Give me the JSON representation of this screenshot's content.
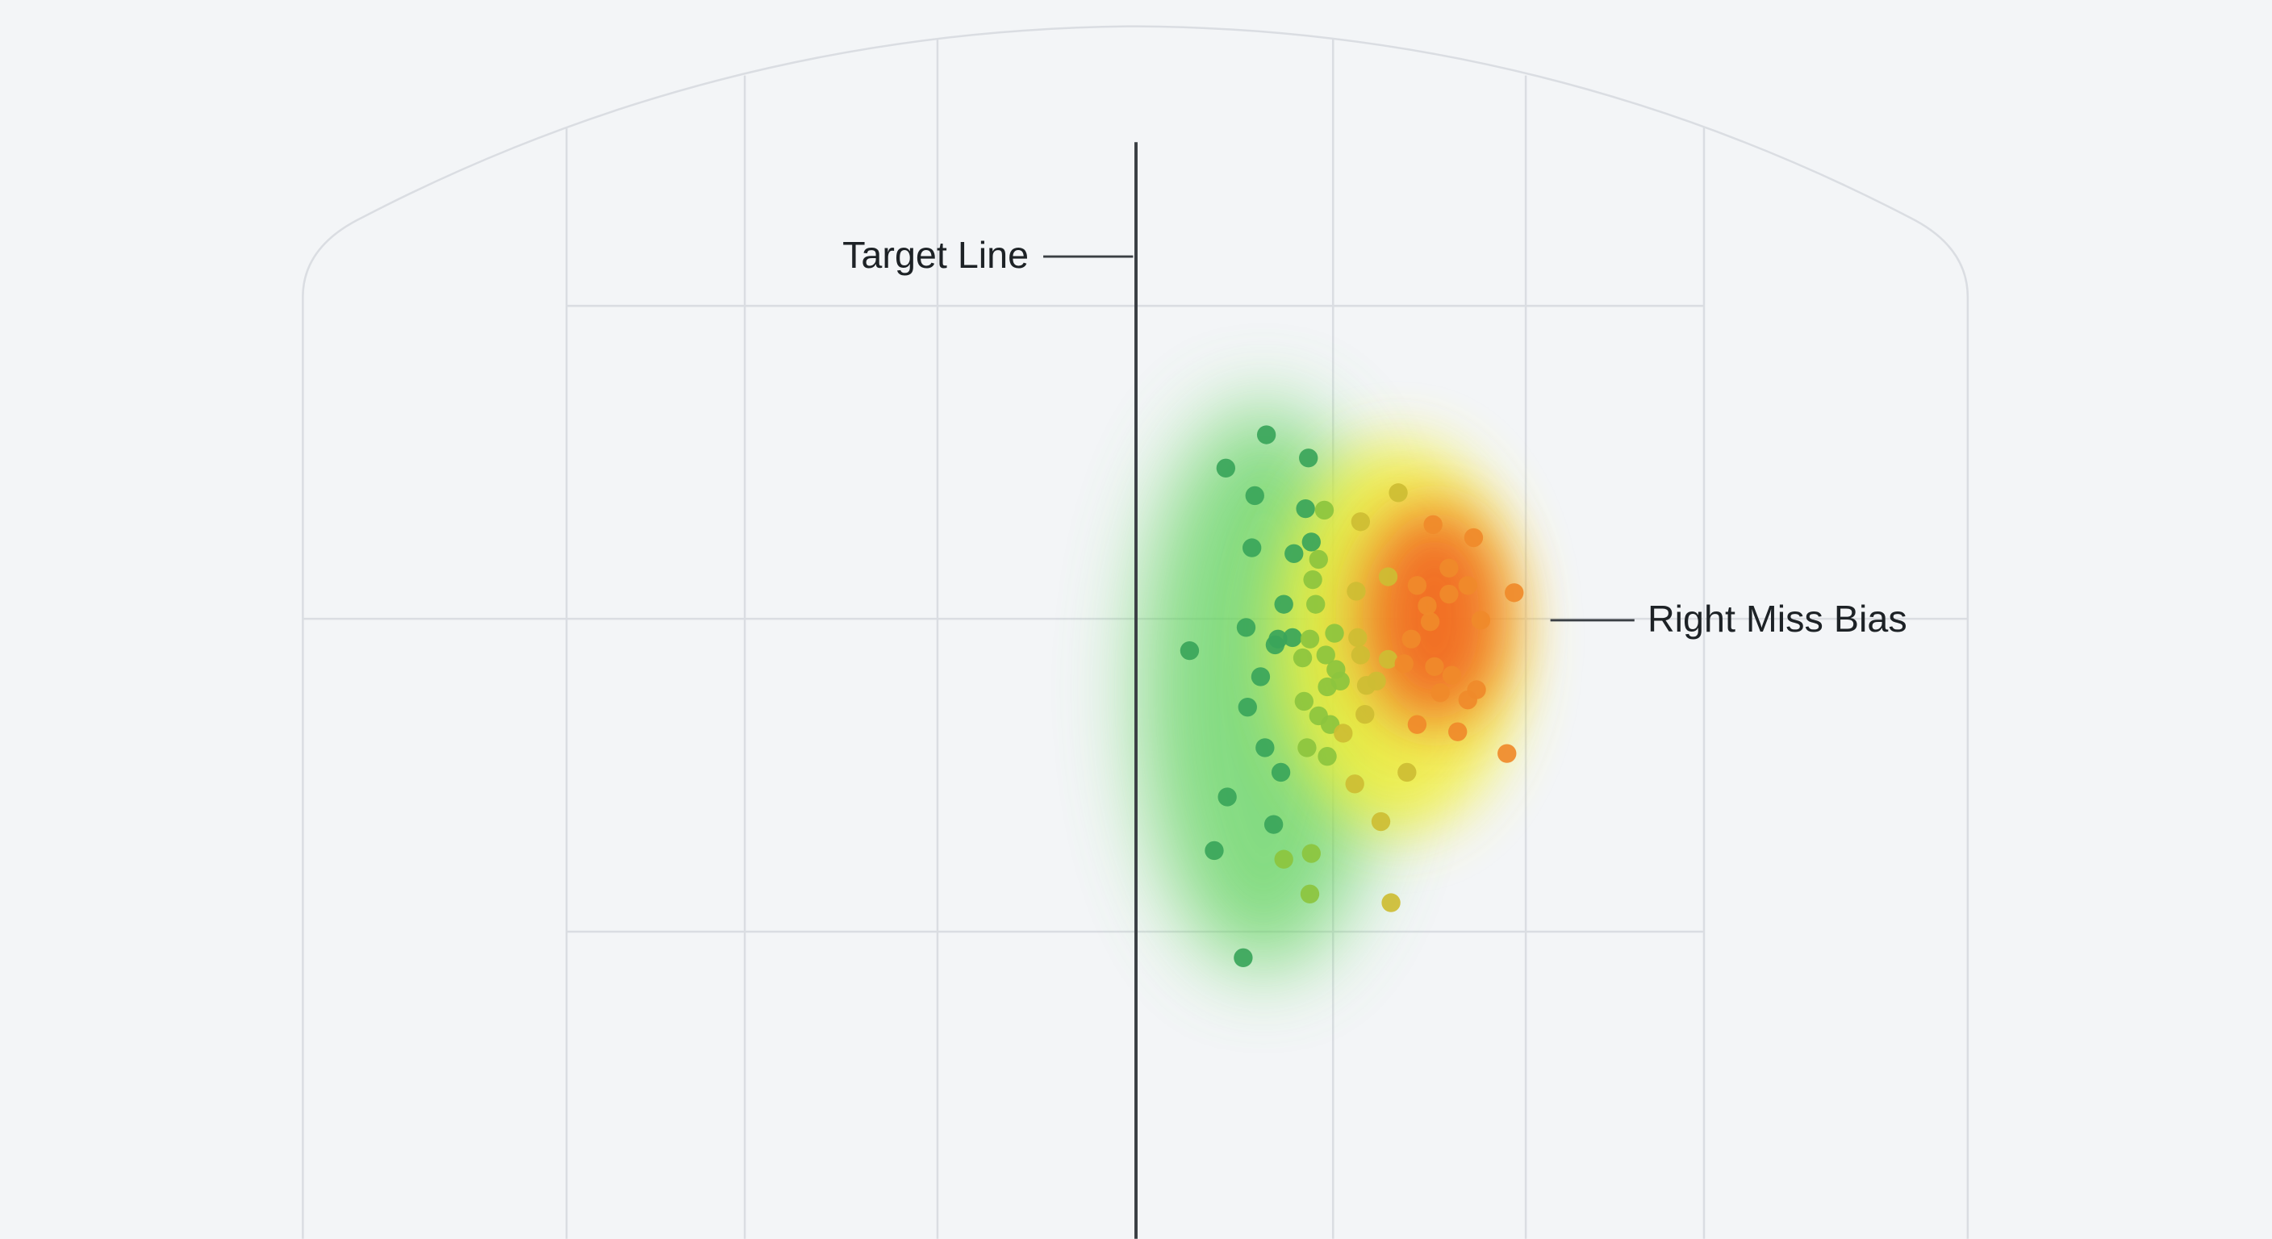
{
  "labels": {
    "target_line": "Target Line",
    "right_miss_bias": "Right Miss Bias"
  }
}
